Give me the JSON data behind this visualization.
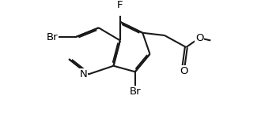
{
  "bg_color": "#ffffff",
  "bond_color": "#1a1a1a",
  "line_width": 1.5,
  "font_size": 9.5,
  "xlim": [
    -0.5,
    9.0
  ],
  "ylim": [
    -2.8,
    4.5
  ]
}
